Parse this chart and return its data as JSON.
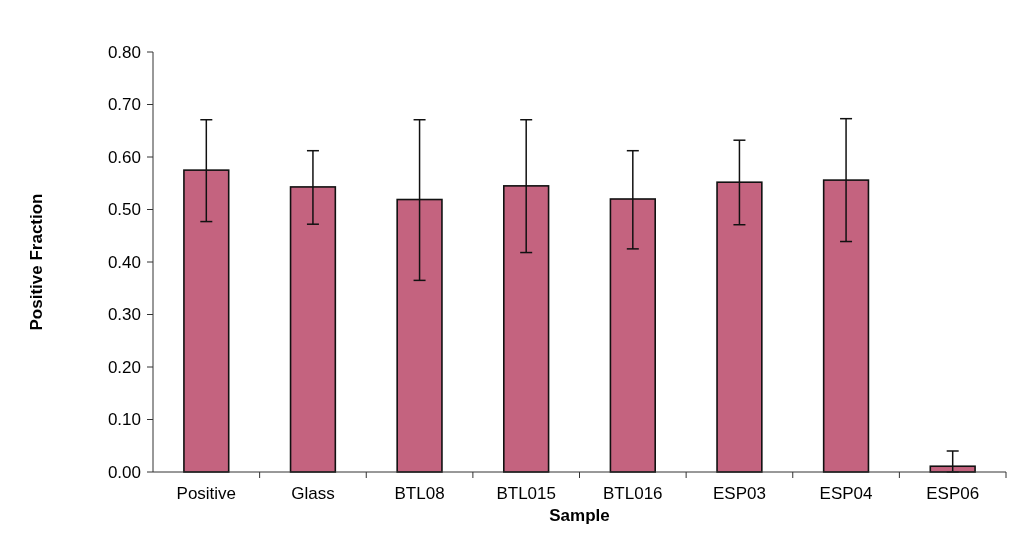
{
  "chart_data": {
    "type": "bar",
    "xlabel": "Sample",
    "ylabel": "Positive Fraction",
    "categories": [
      "Positive",
      "Glass",
      "BTL08",
      "BTL015",
      "BTL016",
      "ESP03",
      "ESP04",
      "ESP06"
    ],
    "values": [
      0.575,
      0.543,
      0.519,
      0.545,
      0.52,
      0.552,
      0.556,
      0.011
    ],
    "errors": [
      [
        0.477,
        0.671
      ],
      [
        0.472,
        0.612
      ],
      [
        0.365,
        0.671
      ],
      [
        0.418,
        0.671
      ],
      [
        0.425,
        0.612
      ],
      [
        0.471,
        0.632
      ],
      [
        0.439,
        0.673
      ],
      [
        0,
        0.04
      ]
    ],
    "color": "#c4637f",
    "ylim": [
      0,
      0.8
    ],
    "yticks": [
      {
        "value": 0,
        "label": "0.00"
      },
      {
        "value": 0.1,
        "label": "0.10"
      },
      {
        "value": 0.2,
        "label": "0.20"
      },
      {
        "value": 0.3,
        "label": "0.30"
      },
      {
        "value": 0.4,
        "label": "0.40"
      },
      {
        "value": 0.5,
        "label": "0.50"
      },
      {
        "value": 0.6,
        "label": "0.60"
      },
      {
        "value": 0.7,
        "label": "0.70"
      },
      {
        "value": 0.8,
        "label": "0.80"
      }
    ],
    "grid": false
  }
}
